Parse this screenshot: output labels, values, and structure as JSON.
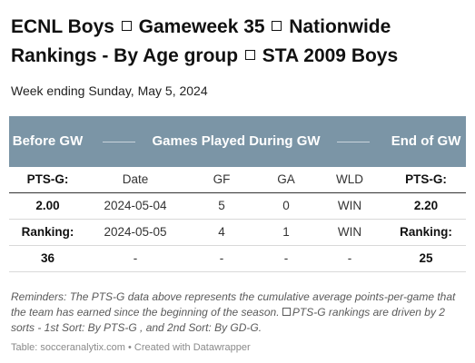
{
  "title": {
    "part1": "ECNL Boys",
    "part2": "Gameweek 35",
    "part3": "Nationwide Rankings - By Age group",
    "part4": "STA 2009 Boys"
  },
  "subtitle": "Week ending Sunday, May 5, 2024",
  "table": {
    "header": {
      "before": "Before GW",
      "middle": "Games Played During GW",
      "end": "End of GW"
    },
    "subheader": [
      "PTS-G:",
      "Date",
      "GF",
      "GA",
      "WLD",
      "PTS-G:"
    ],
    "rows": [
      [
        "2.00",
        "2024-05-04",
        "5",
        "0",
        "WIN",
        "2.20"
      ],
      [
        "Ranking:",
        "2024-05-05",
        "4",
        "1",
        "WIN",
        "Ranking:"
      ],
      [
        "36",
        "-",
        "-",
        "-",
        "-",
        "25"
      ]
    ]
  },
  "notes": {
    "part1": "Reminders: The PTS-G data above represents the cumulative average points-per-game that the team has earned since the beginning of the season.",
    "part2": "PTS-G rankings are driven by 2 sorts - 1st Sort: By PTS-G , and 2nd Sort: By GD-G."
  },
  "credit": "Table: socceranalytix.com • Created with Datawrapper"
}
